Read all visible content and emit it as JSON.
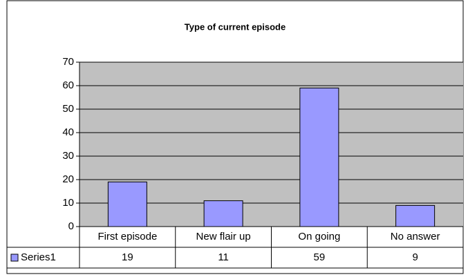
{
  "chart_data": {
    "type": "bar",
    "title": "Type of current episode",
    "categories": [
      "First episode",
      "New flair up",
      "On going",
      "No answer"
    ],
    "series": [
      {
        "name": "Series1",
        "color": "#9999ff",
        "values": [
          19,
          11,
          59,
          9
        ]
      }
    ],
    "ylim": [
      0,
      70
    ],
    "yticks": [
      0,
      10,
      20,
      30,
      40,
      50,
      60,
      70
    ],
    "grid": true
  }
}
